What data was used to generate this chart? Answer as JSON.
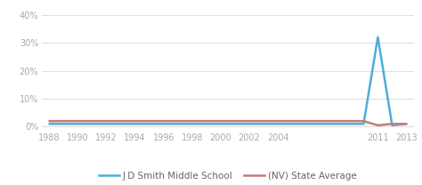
{
  "school_x": [
    1988,
    1989,
    1990,
    1991,
    1992,
    1993,
    1994,
    1995,
    1996,
    1997,
    1998,
    1999,
    2000,
    2001,
    2002,
    2003,
    2004,
    2005,
    2006,
    2007,
    2008,
    2009,
    2010,
    2011,
    2012,
    2013
  ],
  "school_y": [
    0.01,
    0.01,
    0.01,
    0.01,
    0.01,
    0.01,
    0.01,
    0.01,
    0.01,
    0.01,
    0.01,
    0.01,
    0.01,
    0.01,
    0.01,
    0.01,
    0.01,
    0.01,
    0.01,
    0.01,
    0.01,
    0.01,
    0.01,
    0.32,
    0.005,
    0.01
  ],
  "state_x": [
    1988,
    1989,
    1990,
    1991,
    1992,
    1993,
    1994,
    1995,
    1996,
    1997,
    1998,
    1999,
    2000,
    2001,
    2002,
    2003,
    2004,
    2005,
    2006,
    2007,
    2008,
    2009,
    2010,
    2011,
    2012,
    2013
  ],
  "state_y": [
    0.02,
    0.02,
    0.02,
    0.02,
    0.02,
    0.02,
    0.02,
    0.02,
    0.02,
    0.02,
    0.02,
    0.02,
    0.02,
    0.02,
    0.02,
    0.02,
    0.02,
    0.02,
    0.02,
    0.02,
    0.02,
    0.02,
    0.02,
    0.005,
    0.01,
    0.01
  ],
  "school_color": "#4bafd6",
  "state_color": "#c47b72",
  "school_label": "J D Smith Middle School",
  "state_label": "(NV) State Average",
  "xlim": [
    1987.5,
    2013.5
  ],
  "ylim": [
    -0.01,
    0.42
  ],
  "yticks": [
    0.0,
    0.1,
    0.2,
    0.3,
    0.4
  ],
  "ytick_labels": [
    "0%",
    "10%",
    "20%",
    "30%",
    "40%"
  ],
  "xticks": [
    1988,
    1990,
    1992,
    1994,
    1996,
    1998,
    2000,
    2002,
    2004,
    2011,
    2013
  ],
  "bg_color": "#ffffff",
  "plot_bg_color": "#ffffff",
  "grid_color": "#e0e0e0",
  "line_width": 1.8,
  "legend_fontsize": 7.5,
  "tick_fontsize": 7,
  "tick_color": "#aaaaaa"
}
